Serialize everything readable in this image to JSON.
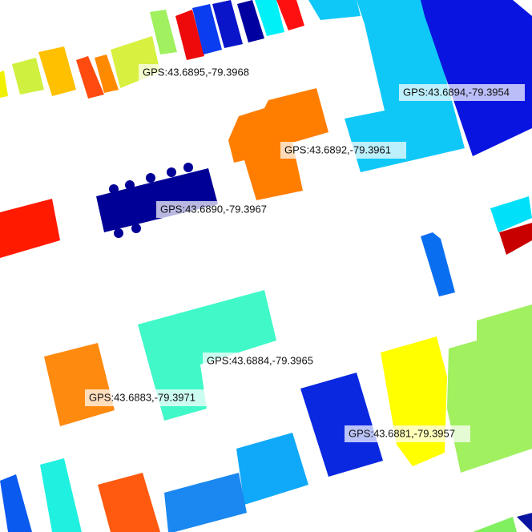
{
  "labels": [
    "GPS:43.6895,-79.3968",
    "GPS:43.6894,-79.3954",
    "GPS:43.6892,-79.3961",
    "GPS:43.6890,-79.3967",
    "GPS:43.6884,-79.3965",
    "GPS:43.6883,-79.3971",
    "GPS:43.6881,-79.3957"
  ]
}
